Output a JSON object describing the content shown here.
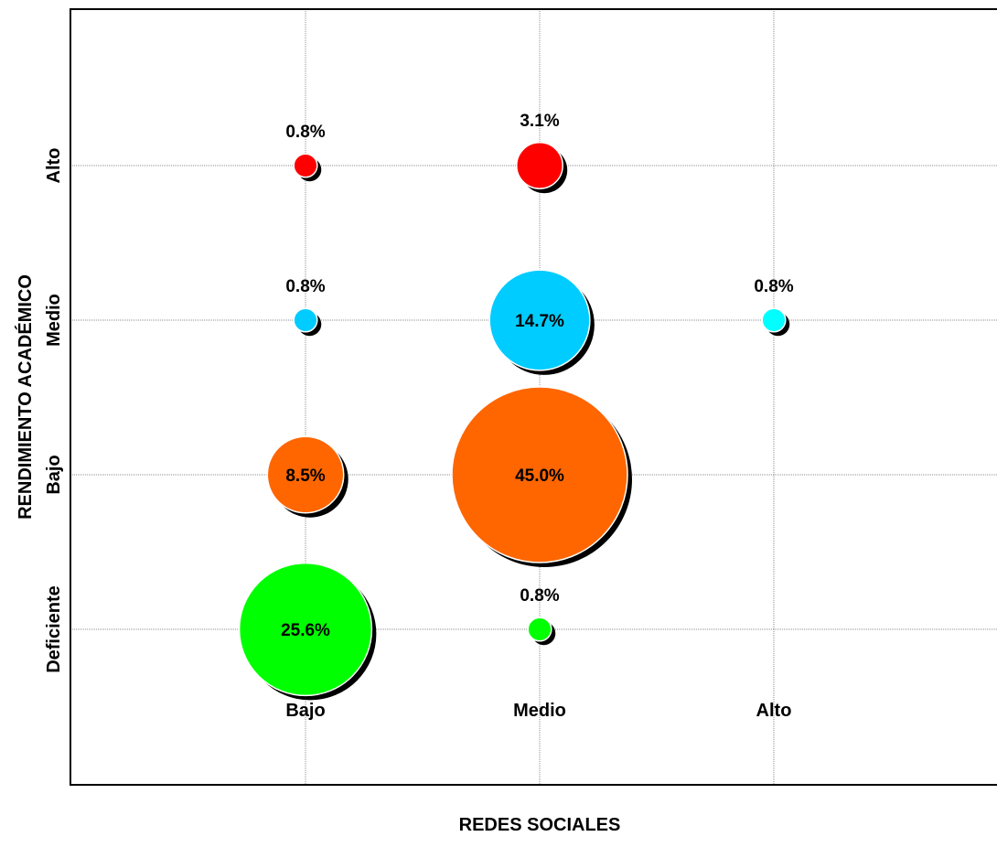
{
  "chart_data": {
    "type": "scatter",
    "subtype": "bubble",
    "title": "",
    "xlabel": "REDES SOCIALES",
    "ylabel": "RENDIMIENTO ACADÉMICO",
    "x_categories": [
      "Bajo",
      "Medio",
      "Alto"
    ],
    "y_categories": [
      "Deficiente",
      "Bajo",
      "Medio",
      "Alto"
    ],
    "grid": true,
    "legend": "none",
    "points": [
      {
        "x": "Bajo",
        "y": "Alto",
        "value": 0.8,
        "label": "0.8%",
        "color": "#ff0000"
      },
      {
        "x": "Medio",
        "y": "Alto",
        "value": 3.1,
        "label": "3.1%",
        "color": "#ff0000"
      },
      {
        "x": "Bajo",
        "y": "Medio",
        "value": 0.8,
        "label": "0.8%",
        "color": "#00ccff"
      },
      {
        "x": "Medio",
        "y": "Medio",
        "value": 14.7,
        "label": "14.7%",
        "color": "#00ccff"
      },
      {
        "x": "Alto",
        "y": "Medio",
        "value": 0.8,
        "label": "0.8%",
        "color": "#00ffff"
      },
      {
        "x": "Bajo",
        "y": "Bajo",
        "value": 8.5,
        "label": "8.5%",
        "color": "#ff6600"
      },
      {
        "x": "Medio",
        "y": "Bajo",
        "value": 45.0,
        "label": "45.0%",
        "color": "#ff6600"
      },
      {
        "x": "Bajo",
        "y": "Deficiente",
        "value": 25.6,
        "label": "25.6%",
        "color": "#00ff00"
      },
      {
        "x": "Medio",
        "y": "Deficiente",
        "value": 0.8,
        "label": "0.8%",
        "color": "#00ff00"
      }
    ]
  }
}
